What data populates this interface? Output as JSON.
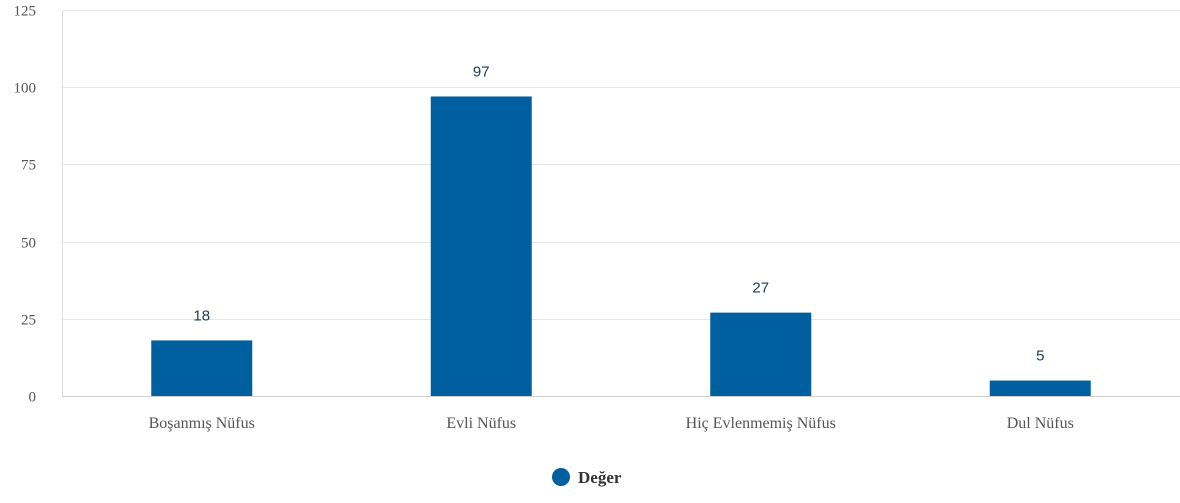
{
  "chart_data": {
    "type": "bar",
    "categories": [
      "Boşanmış Nüfus",
      "Evli Nüfus",
      "Hiç Evlenmemiş Nüfus",
      "Dul Nüfus"
    ],
    "series": [
      {
        "name": "Değer",
        "values": [
          18,
          97,
          27,
          5
        ],
        "color": "#00609f"
      }
    ],
    "ylim": [
      0,
      125
    ],
    "yticks": [
      0,
      25,
      50,
      75,
      100,
      125
    ],
    "grid": true,
    "legend": "bottom-center",
    "data_labels": true,
    "title": "",
    "xlabel": "",
    "ylabel": ""
  }
}
